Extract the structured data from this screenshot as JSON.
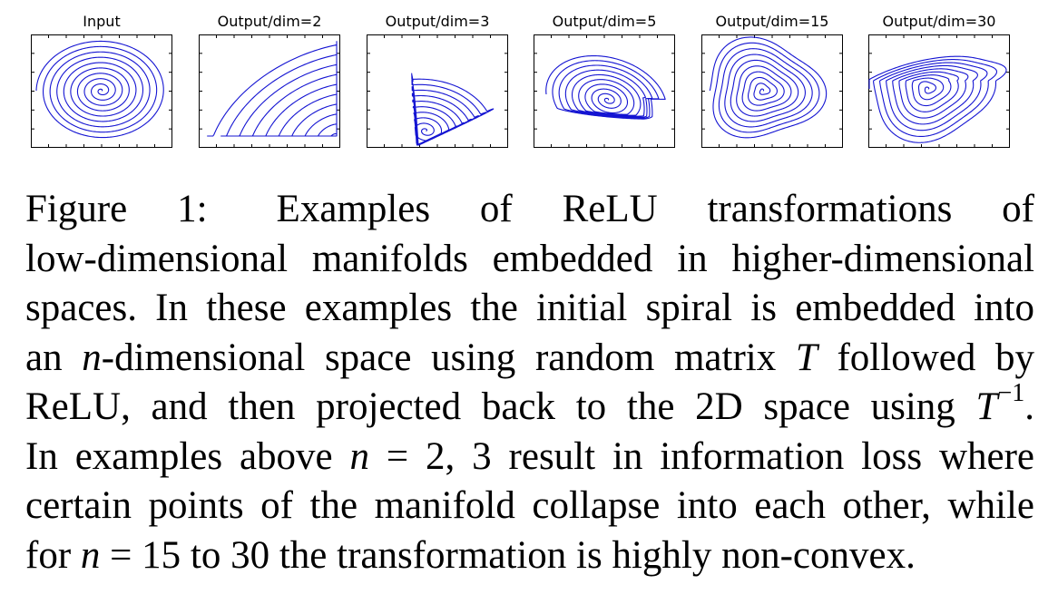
{
  "figure": {
    "panels": [
      {
        "id": "input",
        "title": "Input",
        "kind": "input"
      },
      {
        "id": "dim2",
        "title": "Output/dim=2",
        "kind": "dim2"
      },
      {
        "id": "dim3",
        "title": "Output/dim=3",
        "kind": "dim3"
      },
      {
        "id": "dim5",
        "title": "Output/dim=5",
        "kind": "dim5"
      },
      {
        "id": "dim15",
        "title": "Output/dim=15",
        "kind": "dim15"
      },
      {
        "id": "dim30",
        "title": "Output/dim=30",
        "kind": "dim30"
      }
    ],
    "line_color": "#1414d2",
    "axis_color": "#000000"
  },
  "caption": {
    "label": "Figure 1:",
    "line1_rest": "Examples of ReLU transformations of",
    "line2": "low-dimensional manifolds embedded in higher-dimensional",
    "line3": "spaces. In these examples the initial spiral is embedded into",
    "line4_a": "an ",
    "line4_n": "n",
    "line4_b": "-dimensional space using random matrix ",
    "line4_T": "T",
    "line4_c": " followed by",
    "line5_a": "ReLU, and then projected back to the 2D space using ",
    "line5_T": "T",
    "line5_sup": "−1",
    "line5_b": ".",
    "line6_a": "In examples above ",
    "line6_n": "n",
    "line6_b": " = 2, 3 result in information loss where",
    "line7": "certain points of the manifold collapse into each other, while",
    "line8_a": "for ",
    "line8_n": "n",
    "line8_b": " = 15 to 30 the transformation is highly non-convex."
  }
}
